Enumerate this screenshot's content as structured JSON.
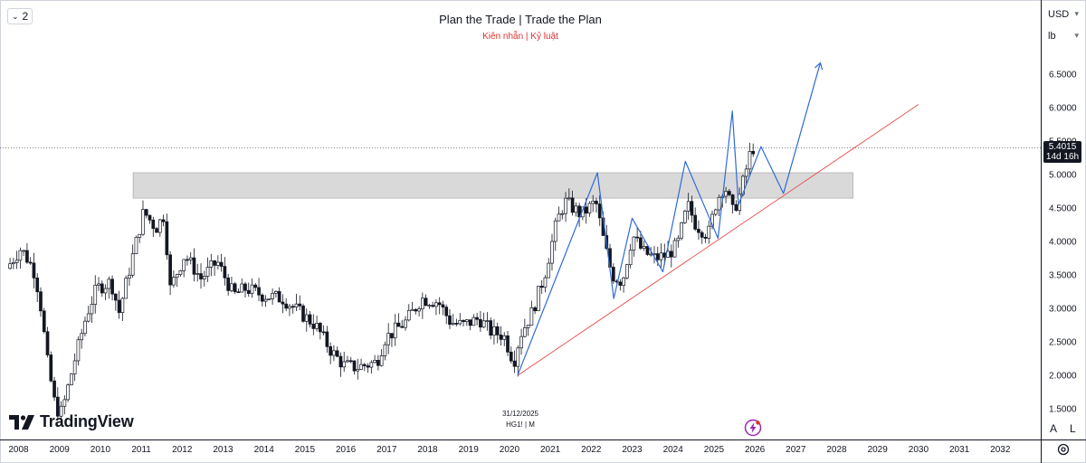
{
  "toolbar": {
    "layout_count": "2",
    "chevron_icon": "chevron-down-icon"
  },
  "header": {
    "title": "Plan the Trade | Trade the Plan",
    "subtitle": "Kiên nhẫn | Kỷ luật"
  },
  "right_panel": {
    "currency": "USD",
    "unit": "lb",
    "scale_auto": "A",
    "scale_log": "L",
    "settings_icon": "gear-icon"
  },
  "current_price": {
    "value": "5.4015",
    "countdown": "14d 16h"
  },
  "watermark": {
    "brand": "TradingView",
    "date": "31/12/2025",
    "symbol": "HG1! | M"
  },
  "colors": {
    "up": "#131722",
    "down": "#131722",
    "trendline": "#e84a4a",
    "projection": "#2f6bd8",
    "zone": "#d9d9d9",
    "price_tag": "#131722",
    "accent": "#e0302f"
  },
  "chart_data": {
    "type": "candlestick",
    "interval": "monthly",
    "x_range": [
      2007.75,
      2032.5
    ],
    "y_range": [
      1.25,
      7.0
    ],
    "y_ticks": [
      6.5,
      6.0,
      5.5,
      5.0,
      4.5,
      4.0,
      3.5,
      3.0,
      2.5,
      2.0,
      1.5
    ],
    "y_tick_labels": [
      "6.5000",
      "6.0000",
      "5.5000",
      "5.0000",
      "4.5000",
      "4.0000",
      "3.5000",
      "3.0000",
      "2.5000",
      "2.0000",
      "1.5000"
    ],
    "x_ticks": [
      2008,
      2009,
      2010,
      2011,
      2012,
      2013,
      2014,
      2015,
      2016,
      2017,
      2018,
      2019,
      2020,
      2021,
      2022,
      2023,
      2024,
      2025,
      2026,
      2027,
      2028,
      2029,
      2030,
      2031,
      2032
    ],
    "x_tick_labels": [
      "2008",
      "2009",
      "2010",
      "2011",
      "2012",
      "2013",
      "2014",
      "2015",
      "2016",
      "2017",
      "2018",
      "2019",
      "2020",
      "2021",
      "2022",
      "2023",
      "2024",
      "2025",
      "2026",
      "2027",
      "2028",
      "2029",
      "2030",
      "2031",
      "2032"
    ],
    "path_anchors": [
      [
        2007.75,
        3.6
      ],
      [
        2008.1,
        3.9
      ],
      [
        2008.4,
        3.6
      ],
      [
        2008.55,
        3.2
      ],
      [
        2008.75,
        2.2
      ],
      [
        2008.95,
        1.5
      ],
      [
        2009.1,
        1.45
      ],
      [
        2009.4,
        2.2
      ],
      [
        2009.7,
        2.9
      ],
      [
        2009.95,
        3.3
      ],
      [
        2010.3,
        3.4
      ],
      [
        2010.5,
        2.95
      ],
      [
        2010.8,
        3.7
      ],
      [
        2011.1,
        4.45
      ],
      [
        2011.4,
        4.2
      ],
      [
        2011.6,
        4.4
      ],
      [
        2011.75,
        3.3
      ],
      [
        2012.1,
        3.8
      ],
      [
        2012.5,
        3.45
      ],
      [
        2012.9,
        3.7
      ],
      [
        2013.3,
        3.2
      ],
      [
        2013.6,
        3.3
      ],
      [
        2014.0,
        3.2
      ],
      [
        2014.5,
        3.15
      ],
      [
        2014.9,
        2.95
      ],
      [
        2015.3,
        2.75
      ],
      [
        2015.7,
        2.35
      ],
      [
        2016.0,
        2.15
      ],
      [
        2016.3,
        2.12
      ],
      [
        2016.8,
        2.2
      ],
      [
        2017.0,
        2.55
      ],
      [
        2017.5,
        2.8
      ],
      [
        2017.9,
        3.15
      ],
      [
        2018.3,
        3.1
      ],
      [
        2018.6,
        2.8
      ],
      [
        2018.9,
        2.75
      ],
      [
        2019.3,
        2.85
      ],
      [
        2019.6,
        2.65
      ],
      [
        2019.9,
        2.6
      ],
      [
        2020.15,
        2.2
      ],
      [
        2020.3,
        2.6
      ],
      [
        2020.6,
        2.95
      ],
      [
        2020.9,
        3.5
      ],
      [
        2021.2,
        4.3
      ],
      [
        2021.4,
        4.6
      ],
      [
        2021.8,
        4.4
      ],
      [
        2022.15,
        4.6
      ],
      [
        2022.35,
        4.0
      ],
      [
        2022.55,
        3.5
      ],
      [
        2022.8,
        3.4
      ],
      [
        2023.05,
        4.1
      ],
      [
        2023.3,
        3.85
      ],
      [
        2023.6,
        3.75
      ],
      [
        2023.9,
        3.8
      ],
      [
        2024.15,
        3.95
      ],
      [
        2024.4,
        4.55
      ],
      [
        2024.6,
        4.25
      ],
      [
        2024.9,
        4.1
      ],
      [
        2025.1,
        4.6
      ],
      [
        2025.3,
        4.85
      ],
      [
        2025.5,
        4.45
      ],
      [
        2025.65,
        4.65
      ],
      [
        2025.8,
        5.0
      ],
      [
        2025.96,
        5.4
      ]
    ],
    "resistance_zone": {
      "x_start": 2010.8,
      "x_end": 2028.4,
      "y_low": 4.65,
      "y_high": 5.03
    },
    "trendline": {
      "x1": 2020.2,
      "y1": 2.0,
      "x2": 2030.0,
      "y2": 6.05
    },
    "projection_path": [
      [
        2020.2,
        2.0
      ],
      [
        2022.15,
        5.03
      ],
      [
        2022.55,
        3.15
      ],
      [
        2023.0,
        4.35
      ],
      [
        2023.75,
        3.55
      ],
      [
        2024.3,
        5.2
      ],
      [
        2025.1,
        4.05
      ],
      [
        2025.45,
        5.95
      ],
      [
        2025.6,
        4.55
      ],
      [
        2026.15,
        5.42
      ],
      [
        2026.7,
        4.72
      ],
      [
        2027.6,
        6.67
      ]
    ],
    "current_value": 5.4015
  }
}
